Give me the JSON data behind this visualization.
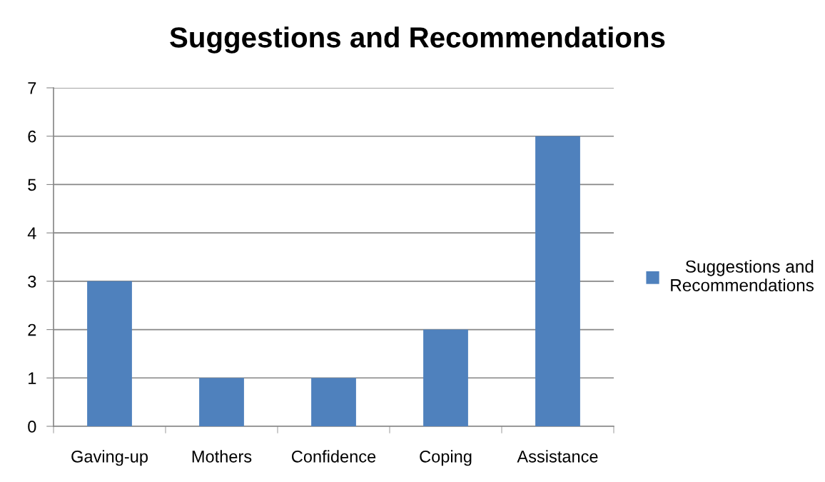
{
  "chart_data": {
    "type": "bar",
    "title": "Suggestions and Recommendations",
    "categories": [
      "Gaving-up",
      "Mothers",
      "Confidence",
      "Coping",
      "Assistance"
    ],
    "series": [
      {
        "name": "Suggestions and Recommendations",
        "color": "#4f81bd",
        "values": [
          3,
          1,
          1,
          2,
          6
        ]
      }
    ],
    "ylim": [
      0,
      7
    ],
    "yticks": [
      0,
      1,
      2,
      3,
      4,
      5,
      6,
      7
    ],
    "grid": "y",
    "legend": "right"
  }
}
